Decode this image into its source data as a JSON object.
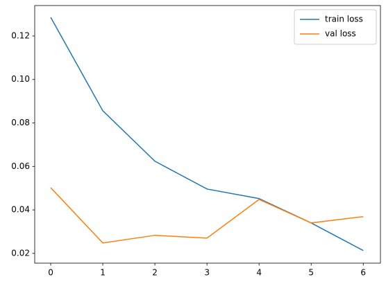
{
  "chart_data": {
    "type": "line",
    "x": [
      0,
      1,
      2,
      3,
      4,
      5,
      6
    ],
    "series": [
      {
        "name": "train loss",
        "color": "#1f77b4",
        "values": [
          0.1286,
          0.0856,
          0.0624,
          0.0496,
          0.0452,
          0.034,
          0.0213
        ]
      },
      {
        "name": "val loss",
        "color": "#ff7f0e",
        "values": [
          0.0502,
          0.0248,
          0.0283,
          0.027,
          0.0448,
          0.034,
          0.0369
        ]
      }
    ],
    "xlim": [
      -0.307,
      6.33
    ],
    "ylim": [
      0.0155,
      0.134
    ],
    "xticks": [
      0,
      1,
      2,
      3,
      4,
      5,
      6
    ],
    "yticks": [
      0.02,
      0.04,
      0.06,
      0.08,
      {
        "value": 0.1,
        "label": "0.10"
      },
      0.12
    ],
    "grid": false,
    "legend": "upper right"
  }
}
